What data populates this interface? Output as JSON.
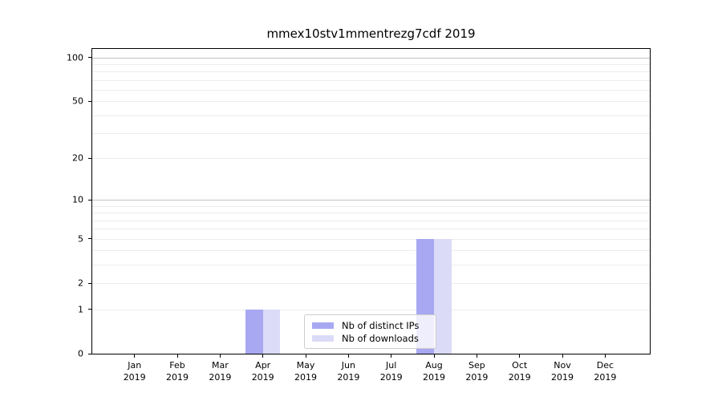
{
  "chart_data": {
    "type": "bar",
    "title": "mmex10stv1mmentrezg7cdf 2019",
    "year": "2019",
    "months": [
      "Jan",
      "Feb",
      "Mar",
      "Apr",
      "May",
      "Jun",
      "Jul",
      "Aug",
      "Sep",
      "Oct",
      "Nov",
      "Dec"
    ],
    "categories": [
      "Jan 2019",
      "Feb 2019",
      "Mar 2019",
      "Apr 2019",
      "May 2019",
      "Jun 2019",
      "Jul 2019",
      "Aug 2019",
      "Sep 2019",
      "Oct 2019",
      "Nov 2019",
      "Dec 2019"
    ],
    "series": [
      {
        "name": "Nb of distinct IPs",
        "color": "#a8a8f2",
        "values": [
          0,
          0,
          0,
          1,
          0,
          0,
          0,
          5,
          0,
          0,
          0,
          0
        ]
      },
      {
        "name": "Nb of downloads",
        "color": "#dbdbf8",
        "values": [
          0,
          0,
          0,
          1,
          0,
          0,
          0,
          5,
          0,
          0,
          0,
          0
        ]
      }
    ],
    "yticks": [
      0,
      1,
      2,
      5,
      10,
      20,
      50,
      100
    ],
    "minor_gridlines": [
      1,
      2,
      3,
      4,
      5,
      6,
      7,
      8,
      9,
      20,
      30,
      40,
      50,
      60,
      70,
      80,
      90
    ],
    "major_gridlines": [
      10,
      100
    ],
    "scale": "log10(value+1)",
    "ylim": [
      0,
      120
    ],
    "xlabel": "",
    "ylabel": "",
    "grid": "horizontal",
    "legend_position": "lower center"
  }
}
